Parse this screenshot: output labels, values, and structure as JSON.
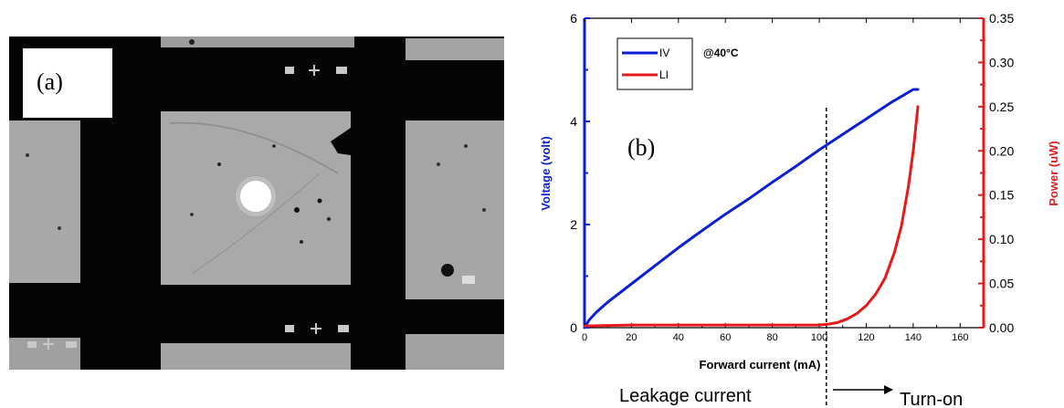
{
  "figure": {
    "panel_a_label": "(a)",
    "panel_b_label": "(b)"
  },
  "chart_data": {
    "type": "line",
    "title": "",
    "xlabel": "Forward current (mA)",
    "ylabel_left": "Voltage (volt)",
    "ylabel_right": "Power (uW)",
    "xlim": [
      0,
      170
    ],
    "ylim_left": [
      0,
      6
    ],
    "ylim_right": [
      0,
      0.35
    ],
    "x_ticks": [
      0,
      20,
      40,
      60,
      80,
      100,
      120,
      140,
      160
    ],
    "y_ticks_left": [
      0,
      2,
      4,
      6
    ],
    "y_ticks_right": [
      "0.00",
      "0.05",
      "0.10",
      "0.15",
      "0.20",
      "0.25",
      "0.30",
      "0.35"
    ],
    "grid": false,
    "legend_position": "top-left",
    "legend_note": "@40°C",
    "series": [
      {
        "name": "IV",
        "axis": "left",
        "color": "#0b1fd6",
        "x": [
          0,
          2,
          5,
          10,
          20,
          30,
          40,
          50,
          60,
          70,
          80,
          90,
          100,
          110,
          120,
          130,
          140,
          142
        ],
        "y": [
          0.0,
          0.15,
          0.3,
          0.5,
          0.85,
          1.2,
          1.55,
          1.88,
          2.2,
          2.5,
          2.82,
          3.13,
          3.45,
          3.75,
          4.05,
          4.35,
          4.62,
          4.62
        ]
      },
      {
        "name": "LI",
        "axis": "right",
        "color": "#e8191a",
        "x": [
          0,
          20,
          40,
          60,
          80,
          100,
          104,
          108,
          112,
          116,
          120,
          124,
          128,
          132,
          135,
          138,
          140,
          141,
          142
        ],
        "y": [
          0.002,
          0.003,
          0.003,
          0.003,
          0.003,
          0.003,
          0.004,
          0.006,
          0.01,
          0.016,
          0.025,
          0.038,
          0.056,
          0.085,
          0.115,
          0.16,
          0.2,
          0.225,
          0.25
        ]
      }
    ],
    "annotations": {
      "threshold_x": 103,
      "left_text": "Leakage current",
      "right_text": "Turn-on"
    }
  }
}
